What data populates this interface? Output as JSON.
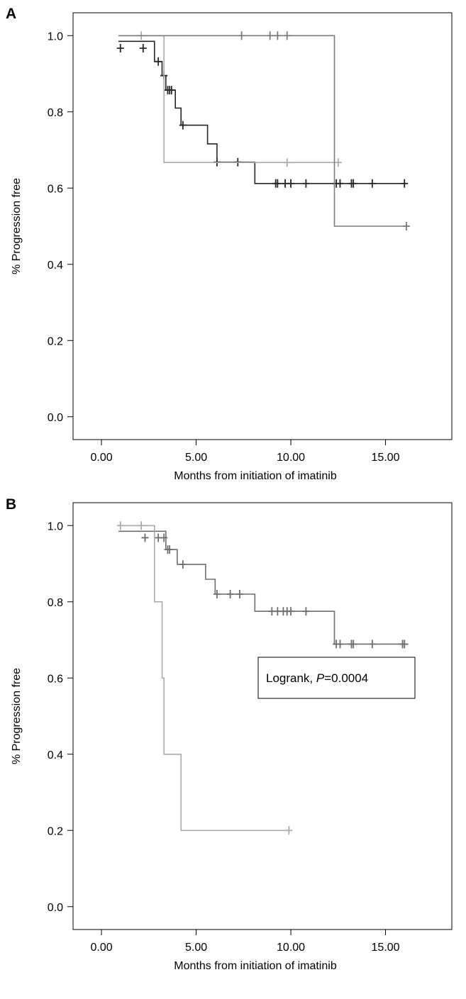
{
  "chart_data": [
    {
      "panel_label": "A",
      "type": "line",
      "step": true,
      "xlabel": "Months from initiation of imatinib",
      "ylabel": "% Progression free",
      "xlim": [
        -1.5,
        18.5
      ],
      "ylim": [
        -0.06,
        1.06
      ],
      "xticks": [
        0,
        5,
        10,
        15
      ],
      "xtick_labels": [
        "0.00",
        "5.00",
        "10.00",
        "15.00"
      ],
      "yticks": [
        0,
        0.2,
        0.4,
        0.6,
        0.8,
        1.0
      ],
      "ytick_labels": [
        "0.0",
        "0.2",
        "0.4",
        "0.6",
        "0.8",
        "1.0"
      ],
      "grid": false,
      "legend": "none",
      "annotation": "",
      "series": [
        {
          "color": "#262626",
          "steps": [
            [
              0.9,
              0.985
            ],
            [
              2.8,
              0.932
            ],
            [
              3.2,
              0.895
            ],
            [
              3.4,
              0.857
            ],
            [
              3.9,
              0.81
            ],
            [
              4.2,
              0.765
            ],
            [
              5.6,
              0.716
            ],
            [
              6.1,
              0.668
            ],
            [
              8.1,
              0.612
            ],
            [
              16.1,
              0.612
            ]
          ],
          "censored": [
            [
              1.0,
              0.967
            ],
            [
              2.2,
              0.967
            ],
            [
              3.0,
              0.932
            ],
            [
              3.3,
              0.895
            ],
            [
              3.5,
              0.857
            ],
            [
              3.6,
              0.857
            ],
            [
              3.7,
              0.857
            ],
            [
              4.3,
              0.765
            ],
            [
              6.1,
              0.668
            ],
            [
              7.2,
              0.668
            ],
            [
              9.2,
              0.612
            ],
            [
              9.3,
              0.612
            ],
            [
              9.7,
              0.612
            ],
            [
              10.0,
              0.612
            ],
            [
              10.8,
              0.612
            ],
            [
              12.4,
              0.612
            ],
            [
              12.6,
              0.612
            ],
            [
              13.2,
              0.612
            ],
            [
              13.3,
              0.612
            ],
            [
              14.3,
              0.612
            ],
            [
              16.0,
              0.612
            ]
          ]
        },
        {
          "color": "#ababab",
          "steps": [
            [
              0.9,
              1.0
            ],
            [
              3.3,
              0.667
            ],
            [
              12.6,
              0.667
            ]
          ],
          "censored": [
            [
              2.1,
              1.0
            ],
            [
              9.8,
              0.667
            ],
            [
              12.5,
              0.667
            ]
          ]
        },
        {
          "color": "#7b7b7b",
          "steps": [
            [
              0.9,
              1.0
            ],
            [
              12.3,
              0.5
            ],
            [
              16.2,
              0.5
            ]
          ],
          "censored": [
            [
              7.4,
              1.0
            ],
            [
              8.9,
              1.0
            ],
            [
              9.3,
              1.0
            ],
            [
              9.8,
              1.0
            ],
            [
              16.1,
              0.5
            ]
          ]
        }
      ]
    },
    {
      "panel_label": "B",
      "type": "line",
      "step": true,
      "xlabel": "Months from initiation of imatinib",
      "ylabel": "% Progression free",
      "xlim": [
        -1.5,
        18.5
      ],
      "ylim": [
        -0.06,
        1.06
      ],
      "xticks": [
        0,
        5,
        10,
        15
      ],
      "xtick_labels": [
        "0.00",
        "5.00",
        "10.00",
        "15.00"
      ],
      "yticks": [
        0,
        0.2,
        0.4,
        0.6,
        0.8,
        1.0
      ],
      "ytick_labels": [
        "0.0",
        "0.2",
        "0.4",
        "0.6",
        "0.8",
        "1.0"
      ],
      "grid": false,
      "legend": "none",
      "annotation": {
        "prefix": "Logrank, ",
        "italic": "P",
        "suffix": "=0.0004"
      },
      "series": [
        {
          "color": "#6e6e6e",
          "steps": [
            [
              0.9,
              0.985
            ],
            [
              3.4,
              0.937
            ],
            [
              4.0,
              0.898
            ],
            [
              5.5,
              0.859
            ],
            [
              6.0,
              0.82
            ],
            [
              8.1,
              0.775
            ],
            [
              12.3,
              0.689
            ],
            [
              16.2,
              0.689
            ]
          ],
          "censored": [
            [
              2.3,
              0.968
            ],
            [
              3.0,
              0.968
            ],
            [
              3.3,
              0.968
            ],
            [
              3.5,
              0.937
            ],
            [
              3.6,
              0.937
            ],
            [
              4.3,
              0.898
            ],
            [
              6.1,
              0.82
            ],
            [
              6.8,
              0.82
            ],
            [
              7.3,
              0.82
            ],
            [
              9.0,
              0.775
            ],
            [
              9.3,
              0.775
            ],
            [
              9.6,
              0.775
            ],
            [
              9.8,
              0.775
            ],
            [
              10.0,
              0.775
            ],
            [
              10.8,
              0.775
            ],
            [
              12.4,
              0.689
            ],
            [
              12.6,
              0.689
            ],
            [
              13.2,
              0.689
            ],
            [
              13.3,
              0.689
            ],
            [
              14.3,
              0.689
            ],
            [
              15.9,
              0.689
            ],
            [
              16.0,
              0.689
            ]
          ]
        },
        {
          "color": "#ababab",
          "steps": [
            [
              0.9,
              1.0
            ],
            [
              2.8,
              0.8
            ],
            [
              3.2,
              0.6
            ],
            [
              3.3,
              0.4
            ],
            [
              4.2,
              0.2
            ],
            [
              9.9,
              0.2
            ]
          ],
          "censored": [
            [
              1.0,
              1.0
            ],
            [
              2.1,
              1.0
            ],
            [
              9.9,
              0.2
            ]
          ]
        }
      ]
    }
  ]
}
